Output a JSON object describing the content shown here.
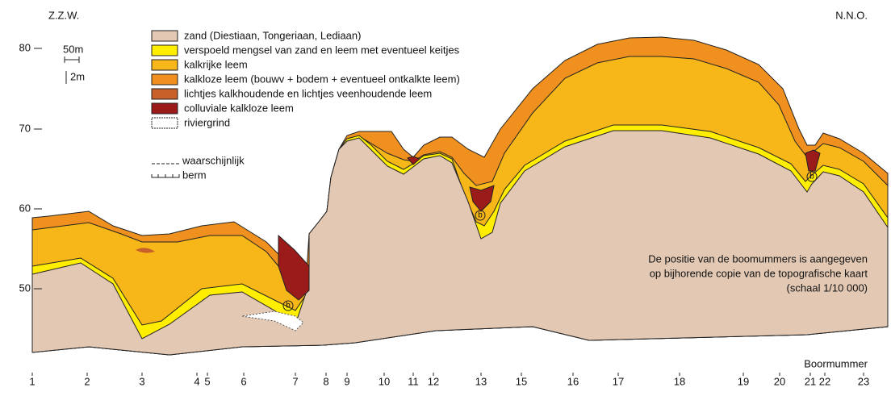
{
  "header": {
    "left": "Z.Z.W.",
    "right": "N.N.O."
  },
  "axis": {
    "labels": [
      80,
      70,
      60,
      50
    ]
  },
  "scale": {
    "horizontal": "50m",
    "vertical": "2m"
  },
  "legend": {
    "items": [
      "zand (Diestiaan, Tongeriaan, Lediaan)",
      "verspoeld mengsel van zand en leem met eventueel keitjes",
      "kalkrijke leem",
      "kalkloze leem (bouwv + bodem + eventueel ontkalkte leem)",
      "lichtjes kalkhoudende en lichtjes veenhoudende leem",
      "colluviale kalkloze leem",
      "riviergrind"
    ],
    "line_items": [
      "waarschijnlijk",
      "berm"
    ]
  },
  "note": [
    "De positie van de boomummers is aangegeven",
    "op bijhorende copie van de topografische kaart",
    "(schaal 1/10 000)"
  ],
  "boreholes": {
    "title": "Boormummer",
    "labels": [
      1,
      2,
      3,
      4,
      5,
      6,
      7,
      8,
      9,
      10,
      11,
      12,
      13,
      15,
      16,
      17,
      18,
      19,
      20,
      21,
      22,
      23
    ]
  },
  "markers": [
    "b",
    "b",
    "b"
  ]
}
